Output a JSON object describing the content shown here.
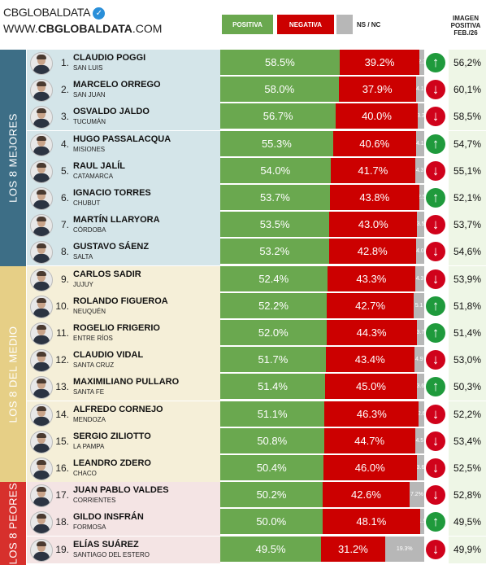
{
  "header": {
    "brand": "CBGLOBALDATA",
    "url_prefix": "WWW.",
    "url_main": "CBGLOBALDATA",
    "url_suffix": ".COM",
    "verified_icon": "check-badge-icon"
  },
  "legend": {
    "positive": "POSITIVA",
    "negative": "NEGATIVA",
    "nsnc": "NS / NC",
    "colors": {
      "positive": "#6aa84f",
      "negative": "#cc0000",
      "nsnc": "#b7b7b7"
    }
  },
  "imagen_header": {
    "line1": "IMAGEN",
    "line2": "POSITIVA",
    "line3": "FEB./26"
  },
  "groups": [
    {
      "label": "LOS 8 MEJORES",
      "color": "#3d6e86",
      "bg": "#d4e5e9"
    },
    {
      "label": "LOS 8 DEL MEDIO",
      "color": "#e6cf86",
      "bg": "#f5efd8"
    },
    {
      "label": "LOS 8 PEORES",
      "color": "#d7302c",
      "bg": "#f4e4e4"
    }
  ],
  "chart_data": {
    "type": "bar",
    "stacked": true,
    "series_names": [
      "POSITIVA",
      "NEGATIVA",
      "NS / NC"
    ],
    "rows": [
      {
        "rank": "1.",
        "name": "CLAUDIO POGGI",
        "province": "SAN LUIS",
        "positive": "58.5%",
        "negative": "39.2%",
        "nsnc": "2.3",
        "trend": "up",
        "imagen": "56,2%",
        "group": 0
      },
      {
        "rank": "2.",
        "name": "MARCELO ORREGO",
        "province": "SAN JUAN",
        "positive": "58.0%",
        "negative": "37.9%",
        "nsnc": "4.1",
        "trend": "down",
        "imagen": "60,1%",
        "group": 0
      },
      {
        "rank": "3.",
        "name": "OSVALDO JALDO",
        "province": "TUCUMÁN",
        "positive": "56.7%",
        "negative": "40.0%",
        "nsnc": "3.3",
        "trend": "down",
        "imagen": "58,5%",
        "group": 0
      },
      {
        "rank": "4.",
        "name": "HUGO PASSALACQUA",
        "province": "MISIONES",
        "positive": "55.3%",
        "negative": "40.6%",
        "nsnc": "4.1",
        "trend": "up",
        "imagen": "54,7%",
        "group": 0
      },
      {
        "rank": "5.",
        "name": "RAUL JALÍL",
        "province": "CATAMARCA",
        "positive": "54.0%",
        "negative": "41.7%",
        "nsnc": "4.3",
        "trend": "down",
        "imagen": "55,1%",
        "group": 0
      },
      {
        "rank": "6.",
        "name": "IGNACIO TORRES",
        "province": "CHUBUT",
        "positive": "53.7%",
        "negative": "43.8%",
        "nsnc": "2.5",
        "trend": "up",
        "imagen": "52,1%",
        "group": 0
      },
      {
        "rank": "7.",
        "name": "MARTÍN LLARYORA",
        "province": "CÓRDOBA",
        "positive": "53.5%",
        "negative": "43.0%",
        "nsnc": "3.5",
        "trend": "down",
        "imagen": "53,7%",
        "group": 0
      },
      {
        "rank": "8.",
        "name": "GUSTAVO SÁENZ",
        "province": "SALTA",
        "positive": "53.2%",
        "negative": "42.8%",
        "nsnc": "4.0",
        "trend": "down",
        "imagen": "54,6%",
        "group": 0
      },
      {
        "rank": "9.",
        "name": "CARLOS SADIR",
        "province": "JUJUY",
        "positive": "52.4%",
        "negative": "43.3%",
        "nsnc": "4.3",
        "trend": "down",
        "imagen": "53,9%",
        "group": 1
      },
      {
        "rank": "10.",
        "name": "ROLANDO FIGUEROA",
        "province": "NEUQUÉN",
        "positive": "52.2%",
        "negative": "42.7%",
        "nsnc": "5.1",
        "trend": "up",
        "imagen": "51,8%",
        "group": 1
      },
      {
        "rank": "11.",
        "name": "ROGELIO FRIGERIO",
        "province": "ENTRE RÍOS",
        "positive": "52.0%",
        "negative": "44.3%",
        "nsnc": "3.7",
        "trend": "up",
        "imagen": "51,4%",
        "group": 1
      },
      {
        "rank": "12.",
        "name": "CLAUDIO VIDAL",
        "province": "SANTA CRUZ",
        "positive": "51.7%",
        "negative": "43.4%",
        "nsnc": "4.9",
        "trend": "down",
        "imagen": "53,0%",
        "group": 1
      },
      {
        "rank": "13.",
        "name": "MAXIMILIANO PULLARO",
        "province": "SANTA FE",
        "positive": "51.4%",
        "negative": "45.0%",
        "nsnc": "3.6",
        "trend": "up",
        "imagen": "50,3%",
        "group": 1
      },
      {
        "rank": "14.",
        "name": "ALFREDO CORNEJO",
        "province": "MENDOZA",
        "positive": "51.1%",
        "negative": "46.3%",
        "nsnc": "2.6",
        "trend": "down",
        "imagen": "52,2%",
        "group": 1
      },
      {
        "rank": "15.",
        "name": "SERGIO ZILIOTTO",
        "province": "LA PAMPA",
        "positive": "50.8%",
        "negative": "44.7%",
        "nsnc": "4.5",
        "trend": "down",
        "imagen": "53,4%",
        "group": 1
      },
      {
        "rank": "16.",
        "name": "LEANDRO ZDERO",
        "province": "CHACO",
        "positive": "50.4%",
        "negative": "46.0%",
        "nsnc": "3.6",
        "trend": "down",
        "imagen": "52,5%",
        "group": 1
      },
      {
        "rank": "17.",
        "name": "JUAN PABLO VALDES",
        "province": "CORRIENTES",
        "positive": "50.2%",
        "negative": "42.6%",
        "nsnc": "7.2%",
        "trend": "down",
        "imagen": "52,8%",
        "group": 2
      },
      {
        "rank": "18.",
        "name": "GILDO INSFRÁN",
        "province": "FORMOSA",
        "positive": "50.0%",
        "negative": "48.1%",
        "nsnc": "1.9",
        "trend": "up",
        "imagen": "49,5%",
        "group": 2
      },
      {
        "rank": "19.",
        "name": "ELÍAS SUÁREZ",
        "province": "SANTIAGO DEL ESTERO",
        "positive": "49.5%",
        "negative": "31.2%",
        "nsnc": "19.3%",
        "trend": "down",
        "imagen": "49,9%",
        "group": 2
      }
    ]
  }
}
